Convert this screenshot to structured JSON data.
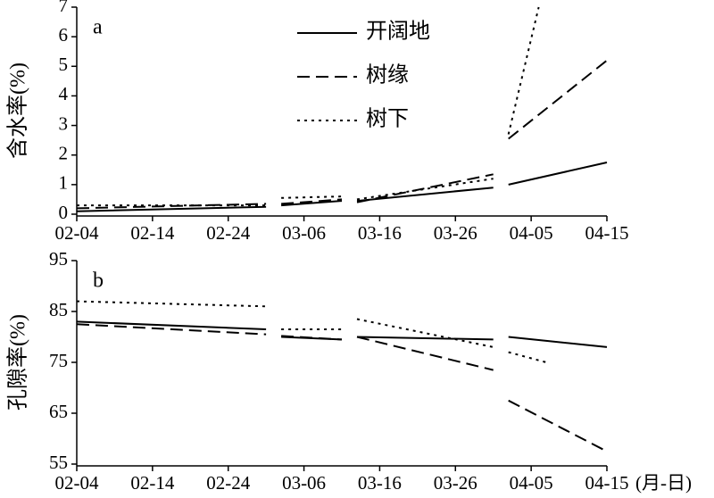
{
  "chart_data": [
    {
      "type": "line",
      "panel_label": "a",
      "y_label": "含水率(%)",
      "xlim": [
        "02-04",
        "04-15"
      ],
      "xticks": [
        "02-04",
        "02-14",
        "02-24",
        "03-06",
        "03-16",
        "03-26",
        "04-05",
        "04-15"
      ],
      "ylim": [
        0,
        7
      ],
      "yticks": [
        0,
        1,
        2,
        3,
        4,
        5,
        6,
        7
      ],
      "legend": "top-center",
      "series": [
        {
          "name": "开阔地",
          "color": "#000000",
          "dash": "solid",
          "x": [
            "02-04",
            "03-01",
            null,
            "03-03",
            "03-11",
            null,
            "03-13",
            "03-31",
            null,
            "04-02",
            "04-15"
          ],
          "values": [
            0.1,
            0.25,
            null,
            0.3,
            0.45,
            null,
            0.45,
            0.9,
            null,
            1.0,
            1.75
          ]
        },
        {
          "name": "树缘",
          "color": "#000000",
          "dash": "dashed",
          "x": [
            "02-04",
            "03-01",
            null,
            "03-03",
            "03-11",
            null,
            "03-13",
            "03-31",
            null,
            "04-02",
            "04-15"
          ],
          "values": [
            0.2,
            0.35,
            null,
            0.35,
            0.5,
            null,
            0.4,
            1.35,
            null,
            2.55,
            5.2
          ]
        },
        {
          "name": "树下",
          "color": "#000000",
          "dash": "dotted",
          "x": [
            "02-04",
            "03-01",
            null,
            "03-03",
            "03-11",
            null,
            "03-13",
            "03-31",
            null,
            "04-02",
            "04-06"
          ],
          "values": [
            0.3,
            0.3,
            null,
            0.55,
            0.6,
            null,
            0.5,
            1.2,
            null,
            2.7,
            7.0
          ]
        }
      ]
    },
    {
      "type": "line",
      "panel_label": "b",
      "y_label": "孔隙率(%)",
      "x_unit_label": "(月-日)",
      "xlim": [
        "02-04",
        "04-15"
      ],
      "xticks": [
        "02-04",
        "02-14",
        "02-24",
        "03-06",
        "03-16",
        "03-26",
        "04-05",
        "04-15"
      ],
      "ylim": [
        55,
        95
      ],
      "yticks": [
        55,
        65,
        75,
        85,
        95
      ],
      "series": [
        {
          "color": "#000000",
          "dash": "solid",
          "x": [
            "02-04",
            "03-01",
            null,
            "03-03",
            "03-11",
            null,
            "03-13",
            "03-31",
            null,
            "04-02",
            "04-15"
          ],
          "values": [
            83,
            81.5,
            null,
            80,
            79.5,
            null,
            80,
            79.5,
            null,
            80,
            78
          ]
        },
        {
          "color": "#000000",
          "dash": "dashed",
          "x": [
            "02-04",
            "03-01",
            null,
            "03-03",
            "03-11",
            null,
            "03-13",
            "03-31",
            null,
            "04-02",
            "04-15"
          ],
          "values": [
            82.5,
            80.5,
            null,
            80.2,
            79.5,
            null,
            80,
            73.5,
            null,
            67.5,
            57.5
          ]
        },
        {
          "color": "#000000",
          "dash": "dotted",
          "x": [
            "02-04",
            "03-01",
            null,
            "03-03",
            "03-11",
            null,
            "03-13",
            "03-31",
            null,
            "04-02",
            "04-07"
          ],
          "values": [
            87,
            86,
            null,
            81.5,
            81.5,
            null,
            83.5,
            78,
            null,
            77,
            75
          ]
        }
      ]
    }
  ]
}
